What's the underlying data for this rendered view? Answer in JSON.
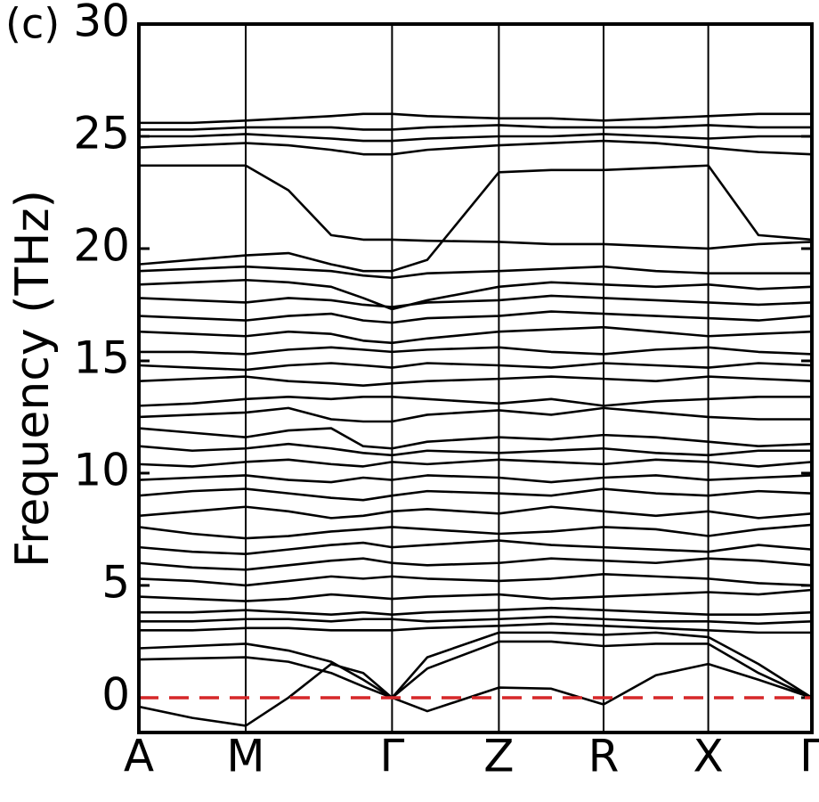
{
  "chart_data": {
    "type": "line",
    "panel_label": "(c)",
    "y_label": "Frequency (THz)",
    "color": "#000000",
    "grid": true,
    "zero_line": {
      "value": 0,
      "color": "#d62728",
      "style": "dashed"
    },
    "xlim": [
      0,
      6.3
    ],
    "ylim": [
      -1.55,
      30
    ],
    "xticks": [
      {
        "value": 0,
        "label": "A"
      },
      {
        "value": 1.0,
        "label": "M"
      },
      {
        "value": 2.37,
        "label": "Γ"
      },
      {
        "value": 3.37,
        "label": "Z"
      },
      {
        "value": 4.35,
        "label": "R"
      },
      {
        "value": 5.33,
        "label": "X"
      },
      {
        "value": 6.3,
        "label": "Γ"
      }
    ],
    "yticks": [
      0,
      5,
      10,
      15,
      20,
      25,
      30
    ],
    "x": [
      0,
      0.5,
      1.0,
      1.4,
      1.8,
      2.1,
      2.37,
      2.7,
      3.37,
      3.86,
      4.35,
      4.84,
      5.33,
      5.8,
      6.3
    ],
    "series": [
      {
        "values": [
          -0.4,
          -0.9,
          -1.25,
          0,
          1.5,
          1.1,
          0,
          -0.6,
          0.45,
          0.4,
          -0.3,
          1.0,
          1.5,
          0.8,
          0
        ]
      },
      {
        "values": [
          1.7,
          1.75,
          1.8,
          1.6,
          1.1,
          0.5,
          0,
          1.3,
          2.5,
          2.5,
          2.3,
          2.4,
          2.4,
          1.1,
          0
        ]
      },
      {
        "values": [
          2.2,
          2.3,
          2.4,
          2.1,
          1.6,
          0.8,
          0,
          1.8,
          2.9,
          2.9,
          2.8,
          2.9,
          2.7,
          1.5,
          0
        ]
      },
      {
        "values": [
          3.0,
          3.0,
          3.1,
          3.1,
          3.0,
          3.0,
          3.0,
          3.1,
          3.2,
          3.3,
          3.2,
          3.1,
          3.0,
          2.9,
          2.9
        ]
      },
      {
        "values": [
          3.4,
          3.4,
          3.5,
          3.5,
          3.4,
          3.5,
          3.5,
          3.4,
          3.5,
          3.6,
          3.5,
          3.4,
          3.4,
          3.3,
          3.4
        ]
      },
      {
        "values": [
          3.8,
          3.8,
          3.9,
          3.8,
          3.7,
          3.8,
          3.7,
          3.8,
          3.9,
          4.0,
          3.9,
          3.8,
          3.7,
          3.7,
          3.8
        ]
      },
      {
        "values": [
          4.5,
          4.4,
          4.3,
          4.4,
          4.6,
          4.5,
          4.4,
          4.5,
          4.6,
          4.4,
          4.5,
          4.6,
          4.7,
          4.6,
          4.8
        ]
      },
      {
        "values": [
          5.3,
          5.2,
          5.0,
          5.2,
          5.4,
          5.3,
          5.4,
          5.3,
          5.2,
          5.3,
          5.5,
          5.4,
          5.3,
          5.1,
          5.0
        ]
      },
      {
        "values": [
          6.0,
          5.8,
          5.7,
          5.9,
          6.1,
          6.2,
          6.0,
          5.9,
          6.0,
          6.2,
          6.1,
          6.0,
          6.2,
          6.1,
          5.9
        ]
      },
      {
        "values": [
          6.7,
          6.5,
          6.4,
          6.6,
          6.8,
          6.9,
          6.7,
          6.8,
          7.0,
          6.8,
          6.7,
          6.6,
          6.5,
          6.8,
          6.6
        ]
      },
      {
        "values": [
          7.6,
          7.3,
          7.1,
          7.2,
          7.4,
          7.5,
          7.6,
          7.5,
          7.3,
          7.4,
          7.6,
          7.5,
          7.2,
          7.5,
          7.7
        ]
      },
      {
        "values": [
          8.1,
          8.3,
          8.5,
          8.3,
          8.0,
          8.1,
          8.3,
          8.4,
          8.2,
          8.5,
          8.3,
          8.1,
          8.3,
          8.0,
          8.2
        ]
      },
      {
        "values": [
          9.0,
          9.2,
          9.3,
          9.1,
          8.9,
          8.8,
          9.0,
          9.2,
          9.1,
          9.0,
          9.3,
          9.1,
          9.0,
          9.2,
          9.1
        ]
      },
      {
        "values": [
          9.7,
          9.8,
          9.9,
          9.7,
          9.6,
          9.8,
          9.7,
          9.9,
          9.8,
          9.6,
          9.8,
          9.9,
          9.7,
          9.8,
          9.9
        ]
      },
      {
        "values": [
          10.4,
          10.3,
          10.5,
          10.6,
          10.4,
          10.3,
          10.5,
          10.4,
          10.6,
          10.5,
          10.4,
          10.6,
          10.5,
          10.3,
          10.5
        ]
      },
      {
        "values": [
          11.2,
          11.0,
          11.1,
          11.3,
          11.1,
          10.9,
          10.8,
          11.0,
          10.9,
          11.0,
          11.1,
          10.9,
          10.8,
          11.0,
          11.0
        ]
      },
      {
        "values": [
          12.0,
          11.8,
          11.6,
          11.9,
          12.0,
          11.2,
          11.1,
          11.4,
          11.6,
          11.5,
          11.7,
          11.6,
          11.4,
          11.2,
          11.3
        ]
      },
      {
        "values": [
          12.5,
          12.6,
          12.7,
          12.9,
          12.4,
          12.3,
          12.3,
          12.6,
          12.8,
          12.6,
          12.9,
          12.7,
          12.5,
          12.4,
          12.4
        ]
      },
      {
        "values": [
          13.0,
          13.1,
          13.3,
          13.4,
          13.3,
          13.4,
          13.4,
          13.3,
          13.1,
          13.3,
          13.0,
          13.2,
          13.3,
          13.4,
          13.4
        ]
      },
      {
        "values": [
          14.1,
          14.2,
          14.3,
          14.1,
          14.0,
          13.9,
          14.0,
          14.1,
          14.2,
          14.3,
          14.2,
          14.1,
          14.3,
          14.2,
          14.1
        ]
      },
      {
        "values": [
          14.8,
          14.7,
          14.6,
          14.8,
          14.9,
          14.8,
          14.7,
          14.9,
          14.8,
          14.7,
          14.9,
          14.8,
          14.7,
          14.9,
          14.8
        ]
      },
      {
        "values": [
          15.4,
          15.4,
          15.3,
          15.5,
          15.6,
          15.5,
          15.4,
          15.5,
          15.6,
          15.4,
          15.3,
          15.5,
          15.6,
          15.4,
          15.3
        ]
      },
      {
        "values": [
          16.3,
          16.2,
          16.1,
          16.3,
          16.2,
          15.9,
          15.8,
          16.0,
          16.3,
          16.4,
          16.5,
          16.3,
          16.1,
          16.2,
          16.3
        ]
      },
      {
        "values": [
          17.0,
          16.9,
          16.8,
          17.0,
          17.1,
          16.8,
          16.7,
          16.9,
          17.0,
          17.2,
          17.1,
          17.0,
          16.9,
          16.8,
          17.0
        ]
      },
      {
        "values": [
          17.8,
          17.7,
          17.6,
          17.8,
          17.7,
          17.5,
          17.4,
          17.6,
          17.7,
          17.9,
          17.8,
          17.7,
          17.6,
          17.5,
          17.6
        ]
      },
      {
        "values": [
          18.4,
          18.5,
          18.6,
          18.5,
          18.3,
          17.8,
          17.3,
          17.7,
          18.3,
          18.5,
          18.4,
          18.3,
          18.4,
          18.2,
          18.3
        ]
      },
      {
        "values": [
          19.0,
          19.1,
          19.2,
          19.1,
          19.0,
          18.8,
          18.7,
          18.9,
          19.0,
          19.1,
          19.2,
          19.0,
          18.9,
          18.9,
          18.9
        ]
      },
      {
        "values": [
          19.3,
          19.5,
          19.7,
          19.8,
          19.3,
          19.0,
          19.0,
          19.5,
          23.4,
          23.5,
          23.5,
          23.6,
          23.7,
          20.6,
          20.4
        ]
      },
      {
        "values": [
          23.7,
          23.7,
          23.7,
          22.6,
          20.6,
          20.4,
          20.4,
          20.35,
          20.3,
          20.2,
          20.2,
          20.1,
          20.0,
          20.2,
          20.3
        ]
      },
      {
        "values": [
          24.5,
          24.6,
          24.7,
          24.6,
          24.4,
          24.2,
          24.2,
          24.4,
          24.6,
          24.7,
          24.8,
          24.7,
          24.5,
          24.3,
          24.2
        ]
      },
      {
        "values": [
          25.0,
          25.0,
          25.1,
          25.0,
          24.9,
          24.8,
          24.8,
          24.9,
          25.0,
          25.0,
          25.1,
          25.0,
          24.9,
          25.0,
          25.0
        ]
      },
      {
        "values": [
          25.3,
          25.3,
          25.4,
          25.4,
          25.4,
          25.3,
          25.3,
          25.4,
          25.5,
          25.4,
          25.4,
          25.4,
          25.5,
          25.4,
          25.4
        ]
      },
      {
        "values": [
          25.6,
          25.6,
          25.7,
          25.8,
          25.9,
          26.0,
          26.0,
          25.9,
          25.8,
          25.8,
          25.7,
          25.8,
          25.9,
          26.0,
          26.0
        ]
      }
    ]
  }
}
